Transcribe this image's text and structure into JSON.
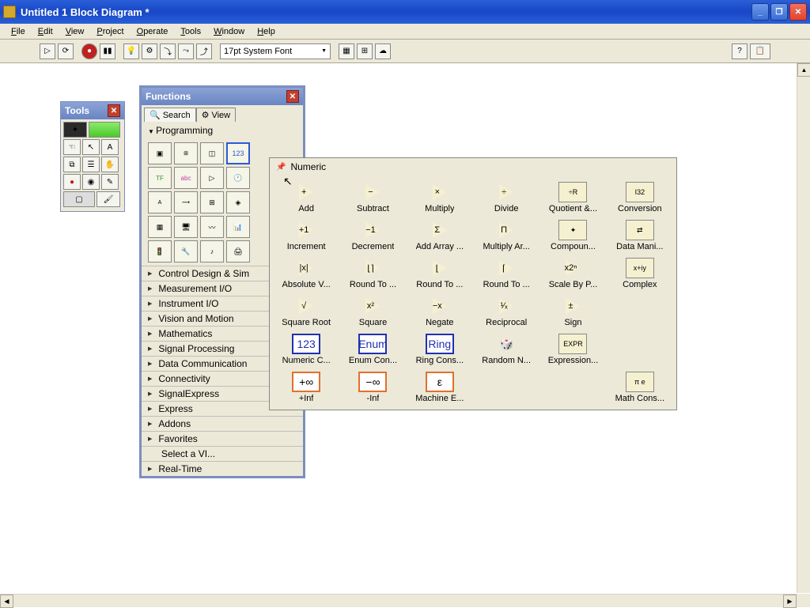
{
  "window": {
    "title": "Untitled 1 Block Diagram *"
  },
  "menu": {
    "file": "File",
    "edit": "Edit",
    "view": "View",
    "project": "Project",
    "operate": "Operate",
    "tools": "Tools",
    "window": "Window",
    "help": "Help"
  },
  "toolbar": {
    "font": "17pt System Font"
  },
  "tools_palette": {
    "title": "Tools"
  },
  "functions_palette": {
    "title": "Functions",
    "tab_search": "Search",
    "tab_view": "View",
    "header": "Programming",
    "categories": [
      "Control Design & Sim",
      "Measurement I/O",
      "Instrument I/O",
      "Vision and Motion",
      "Mathematics",
      "Signal Processing",
      "Data Communication",
      "Connectivity",
      "SignalExpress",
      "Express",
      "Addons",
      "Favorites",
      "Select a VI...",
      "Real-Time"
    ]
  },
  "numeric_palette": {
    "title": "Numeric",
    "items": [
      {
        "label": "Add",
        "sym": "+",
        "type": "tri"
      },
      {
        "label": "Subtract",
        "sym": "−",
        "type": "tri"
      },
      {
        "label": "Multiply",
        "sym": "×",
        "type": "tri"
      },
      {
        "label": "Divide",
        "sym": "÷",
        "type": "tri"
      },
      {
        "label": "Quotient &...",
        "sym": "÷R",
        "type": "box"
      },
      {
        "label": "Conversion",
        "sym": "I32",
        "type": "box"
      },
      {
        "label": "Increment",
        "sym": "+1",
        "type": "tri"
      },
      {
        "label": "Decrement",
        "sym": "−1",
        "type": "tri"
      },
      {
        "label": "Add Array ...",
        "sym": "Σ",
        "type": "tri"
      },
      {
        "label": "Multiply Ar...",
        "sym": "Π",
        "type": "tri"
      },
      {
        "label": "Compoun...",
        "sym": "✦",
        "type": "box"
      },
      {
        "label": "Data Mani...",
        "sym": "⇄",
        "type": "box"
      },
      {
        "label": "Absolute V...",
        "sym": "|x|",
        "type": "tri"
      },
      {
        "label": "Round To ...",
        "sym": "⌊⌉",
        "type": "tri"
      },
      {
        "label": "Round To ...",
        "sym": "⌊",
        "type": "tri"
      },
      {
        "label": "Round To ...",
        "sym": "⌈",
        "type": "tri"
      },
      {
        "label": "Scale By P...",
        "sym": "x2ⁿ",
        "type": "tri"
      },
      {
        "label": "Complex",
        "sym": "x+iy",
        "type": "box"
      },
      {
        "label": "Square Root",
        "sym": "√",
        "type": "tri"
      },
      {
        "label": "Square",
        "sym": "x²",
        "type": "tri"
      },
      {
        "label": "Negate",
        "sym": "−x",
        "type": "tri"
      },
      {
        "label": "Reciprocal",
        "sym": "¹⁄ₓ",
        "type": "tri"
      },
      {
        "label": "Sign",
        "sym": "±",
        "type": "tri"
      },
      {
        "label": "",
        "sym": "",
        "type": "empty"
      },
      {
        "label": "Numeric C...",
        "sym": "123",
        "type": "bluebox"
      },
      {
        "label": "Enum Con...",
        "sym": "Enum",
        "type": "bluebox"
      },
      {
        "label": "Ring Cons...",
        "sym": "Ring",
        "type": "bluebox"
      },
      {
        "label": "Random N...",
        "sym": "🎲",
        "type": "plain"
      },
      {
        "label": "Expression...",
        "sym": "EXPR",
        "type": "box"
      },
      {
        "label": "",
        "sym": "",
        "type": "empty"
      },
      {
        "label": "+Inf",
        "sym": "+∞",
        "type": "orangebox"
      },
      {
        "label": "-Inf",
        "sym": "−∞",
        "type": "orangebox"
      },
      {
        "label": "Machine E...",
        "sym": "ε",
        "type": "orangebox"
      },
      {
        "label": "",
        "sym": "",
        "type": "empty"
      },
      {
        "label": "",
        "sym": "",
        "type": "empty"
      },
      {
        "label": "Math Cons...",
        "sym": "π e",
        "type": "box"
      }
    ]
  },
  "colors": {
    "titlebar": "#2a5fd8",
    "panel": "#ece9d8",
    "palette_border": "#7b8ebf"
  }
}
